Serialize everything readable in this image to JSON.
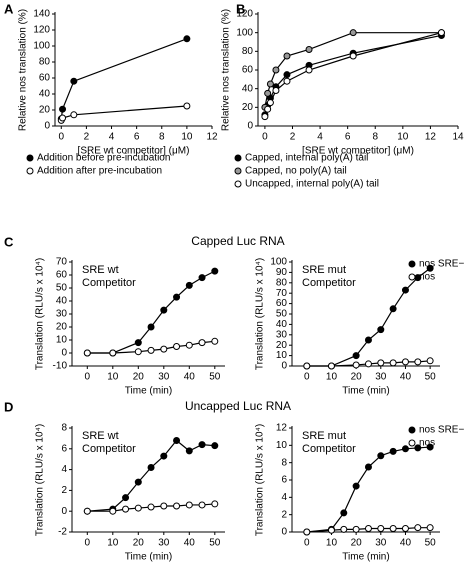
{
  "panel_labels": [
    "A",
    "B",
    "C",
    "D"
  ],
  "section_titles": [
    "Capped Luc RNA",
    "Uncapped Luc RNA"
  ],
  "chart_data": [
    {
      "type": "scatter",
      "connect": true,
      "xlabel": "[SRE wt competitor] (μM)",
      "ylabel": "Relative nos translation (%)",
      "x": [
        0,
        0.1,
        1,
        10
      ],
      "xlim": [
        -0.5,
        12
      ],
      "xticks": [
        0,
        2,
        4,
        6,
        8,
        10,
        12
      ],
      "ylim": [
        0,
        140
      ],
      "yticks": [
        0,
        20,
        40,
        60,
        80,
        100,
        120,
        140
      ],
      "series": [
        {
          "name": "Addition before pre-incubation",
          "color": "#000000",
          "values": [
            9,
            21,
            56,
            109
          ]
        },
        {
          "name": "Addition after pre-incubation",
          "color": "#ffffff",
          "values": [
            7,
            10,
            14,
            25
          ]
        }
      ]
    },
    {
      "type": "scatter",
      "connect": true,
      "xlabel": "[SRE wt competitor] (μM)",
      "ylabel": "Relative nos translation (%)",
      "x": [
        0,
        0.2,
        0.4,
        0.8,
        1.6,
        3.2,
        6.4,
        12.8
      ],
      "xlim": [
        -0.5,
        14
      ],
      "xticks": [
        0,
        2,
        4,
        6,
        8,
        10,
        12,
        14
      ],
      "ylim": [
        0,
        120
      ],
      "yticks": [
        0,
        20,
        40,
        60,
        80,
        100,
        120
      ],
      "series": [
        {
          "name": "Capped, internal poly(A) tail",
          "color": "#000000",
          "values": [
            12,
            22,
            30,
            42,
            55,
            65,
            78,
            97
          ]
        },
        {
          "name": "Capped, no poly(A) tail",
          "color": "#999999",
          "values": [
            20,
            35,
            45,
            60,
            75,
            82,
            100,
            100
          ]
        },
        {
          "name": "Uncapped, internal poly(A) tail",
          "color": "#ffffff",
          "values": [
            10,
            18,
            25,
            38,
            48,
            60,
            75,
            100
          ]
        }
      ]
    },
    {
      "type": "scatter",
      "connect": true,
      "annotation": [
        "SRE wt",
        "Competitor"
      ],
      "xlabel": "Time (min)",
      "ylabel": "Translation (RLU/s x 10⁴)",
      "x": [
        0,
        10,
        20,
        25,
        30,
        35,
        40,
        45,
        50
      ],
      "xlim": [
        -6,
        54
      ],
      "xticks": [
        0,
        10,
        20,
        30,
        40,
        50
      ],
      "ylim": [
        -10,
        70
      ],
      "yticks": [
        -10,
        0,
        10,
        20,
        30,
        40,
        50,
        60,
        70
      ],
      "series": [
        {
          "color": "#000000",
          "values": [
            0,
            0,
            8,
            20,
            33,
            43,
            52,
            58,
            63
          ]
        },
        {
          "color": "#ffffff",
          "values": [
            0,
            0,
            1,
            2,
            3,
            5,
            6,
            8,
            9
          ]
        }
      ]
    },
    {
      "type": "scatter",
      "connect": true,
      "annotation": [
        "SRE mut",
        "Competitor"
      ],
      "xlabel": "Time (min)",
      "ylabel": "Translation (RLU/s x 10⁴)",
      "x": [
        0,
        10,
        20,
        25,
        30,
        35,
        40,
        45,
        50
      ],
      "xlim": [
        -6,
        54
      ],
      "xticks": [
        0,
        10,
        20,
        30,
        40,
        50
      ],
      "ylim": [
        0,
        100
      ],
      "yticks": [
        0,
        10,
        20,
        30,
        40,
        50,
        60,
        70,
        80,
        90,
        100
      ],
      "series": [
        {
          "name": "nos SRE−",
          "color": "#000000",
          "values": [
            0,
            0,
            10,
            25,
            35,
            55,
            73,
            85,
            94
          ]
        },
        {
          "name": "nos",
          "color": "#ffffff",
          "values": [
            0,
            0,
            1,
            2,
            3,
            3,
            4,
            4,
            5
          ]
        }
      ]
    },
    {
      "type": "scatter",
      "connect": true,
      "annotation": [
        "SRE wt",
        "Competitor"
      ],
      "xlabel": "Time (min)",
      "ylabel": "Translation (RLU/s x 10⁴)",
      "x": [
        0,
        10,
        15,
        20,
        25,
        30,
        35,
        40,
        45,
        50
      ],
      "xlim": [
        -6,
        54
      ],
      "xticks": [
        0,
        10,
        20,
        30,
        40,
        50
      ],
      "ylim": [
        -2,
        8
      ],
      "yticks": [
        -2,
        0,
        2,
        4,
        6,
        8
      ],
      "series": [
        {
          "color": "#000000",
          "values": [
            0,
            0.2,
            1.3,
            2.8,
            4.2,
            5.3,
            6.8,
            5.8,
            6.4,
            6.3
          ]
        },
        {
          "color": "#ffffff",
          "values": [
            0,
            0,
            0.2,
            0.3,
            0.4,
            0.5,
            0.5,
            0.6,
            0.6,
            0.7
          ]
        }
      ]
    },
    {
      "type": "scatter",
      "connect": true,
      "annotation": [
        "SRE mut",
        "Competitor"
      ],
      "xlabel": "Time (min)",
      "ylabel": "Translation (RLU/s x 10⁴)",
      "x": [
        0,
        10,
        15,
        20,
        25,
        30,
        35,
        40,
        45,
        50
      ],
      "xlim": [
        -6,
        54
      ],
      "xticks": [
        0,
        10,
        20,
        30,
        40,
        50
      ],
      "ylim": [
        0,
        12
      ],
      "yticks": [
        0,
        2,
        4,
        6,
        8,
        10,
        12
      ],
      "series": [
        {
          "name": "nos SRE−",
          "color": "#000000",
          "values": [
            0,
            0.3,
            2.2,
            5.3,
            7.5,
            8.8,
            9.3,
            9.6,
            9.7,
            9.8
          ]
        },
        {
          "name": "nos",
          "color": "#ffffff",
          "values": [
            0,
            0.2,
            0.3,
            0.3,
            0.4,
            0.4,
            0.4,
            0.4,
            0.5,
            0.5
          ]
        }
      ]
    }
  ]
}
